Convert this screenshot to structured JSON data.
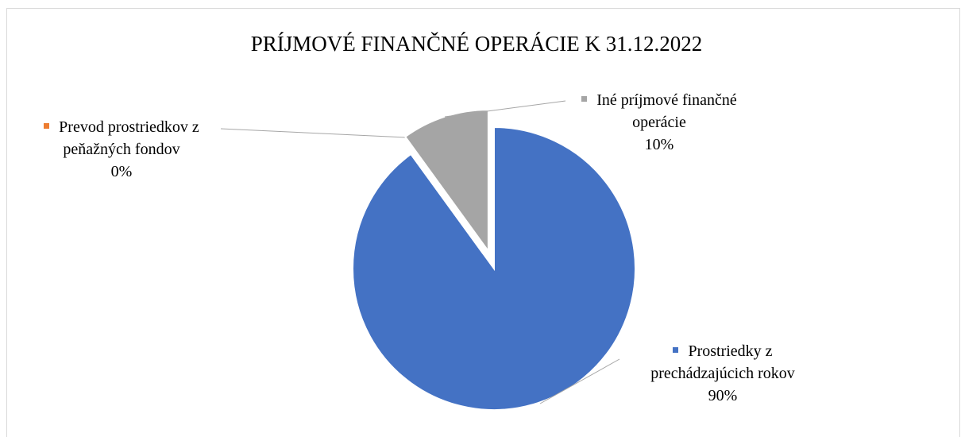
{
  "chart_data": {
    "type": "pie",
    "title": "PRÍJMOVÉ FINANČNÉ OPERÁCIE K 31.12.2022",
    "categories": [
      "Prostriedky z prechádzajúcich rokov",
      "Prevod prostriedkov z peňažných fondov",
      "Iné príjmové finančné operácie"
    ],
    "values": [
      90,
      0,
      10
    ],
    "value_labels": [
      "90%",
      "0%",
      "10%"
    ],
    "colors": [
      "#4472c4",
      "#ed7d31",
      "#a5a5a5"
    ]
  }
}
